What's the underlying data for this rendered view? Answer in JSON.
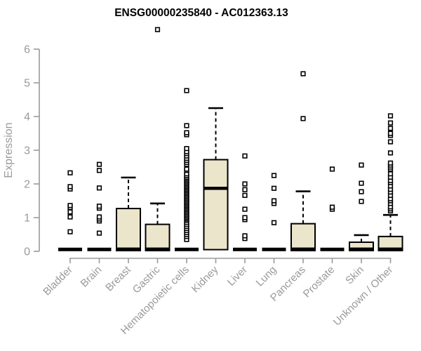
{
  "figure": {
    "title": "ENSG00000235840 - AC012363.13",
    "y_axis_label": "Expression"
  },
  "chart_data": {
    "type": "boxplot",
    "title": "ENSG00000235840 - AC012363.13",
    "xlabel": "",
    "ylabel": "Expression",
    "ylim": [
      0,
      6.8
    ],
    "yticks": [
      0,
      1,
      2,
      3,
      4,
      5,
      6
    ],
    "grid": false,
    "legend": false,
    "categories": [
      "Bladder",
      "Brain",
      "Breast",
      "Gastric",
      "Hematopoietic cells",
      "Kidney",
      "Liver",
      "Lung",
      "Pancreas",
      "Prostate",
      "Skin",
      "Unknown / Other"
    ],
    "series": [
      {
        "name": "Bladder",
        "q1": 0,
        "median": 0,
        "q3": 0,
        "whisker_low": 0,
        "whisker_high": 0,
        "outliers": [
          0.58,
          1.02,
          1.17,
          1.3,
          1.36,
          1.85,
          1.92,
          2.33
        ]
      },
      {
        "name": "Brain",
        "q1": 0,
        "median": 0,
        "q3": 0,
        "whisker_low": 0,
        "whisker_high": 0,
        "outliers": [
          0.54,
          0.9,
          0.96,
          1.02,
          1.28,
          1.34,
          1.88,
          2.4,
          2.58
        ]
      },
      {
        "name": "Breast",
        "q1": 0,
        "median": 0,
        "q3": 1.27,
        "whisker_low": 0,
        "whisker_high": 2.19,
        "outliers": []
      },
      {
        "name": "Gastric",
        "q1": 0,
        "median": 0,
        "q3": 0.8,
        "whisker_low": 0,
        "whisker_high": 1.42,
        "outliers": [
          6.58
        ]
      },
      {
        "name": "Hematopoietic cells",
        "q1": 0,
        "median": 0,
        "q3": 0,
        "whisker_low": 0,
        "whisker_high": 0,
        "outliers": [
          0.35,
          0.44,
          0.5,
          0.56,
          0.62,
          0.68,
          0.74,
          0.8,
          0.86,
          0.92,
          0.96,
          1.0,
          1.04,
          1.08,
          1.12,
          1.16,
          1.2,
          1.24,
          1.28,
          1.32,
          1.36,
          1.4,
          1.44,
          1.48,
          1.52,
          1.56,
          1.6,
          1.64,
          1.68,
          1.72,
          1.76,
          1.8,
          1.84,
          1.88,
          1.92,
          1.96,
          2.0,
          2.04,
          2.08,
          2.12,
          2.16,
          2.2,
          2.25,
          2.3,
          2.4,
          2.44,
          2.58,
          2.64,
          2.7,
          2.76,
          2.83,
          2.9,
          2.96,
          3.05,
          3.46,
          3.52,
          3.73,
          4.77
        ]
      },
      {
        "name": "Kidney",
        "q1": 0.05,
        "median": 1.87,
        "q3": 2.72,
        "whisker_low": 0,
        "whisker_high": 4.25,
        "outliers": []
      },
      {
        "name": "Liver",
        "q1": 0,
        "median": 0,
        "q3": 0,
        "whisker_low": 0,
        "whisker_high": 0,
        "outliers": [
          0.38,
          0.46,
          0.94,
          1.0,
          1.25,
          1.66,
          1.83,
          2.0,
          2.83
        ]
      },
      {
        "name": "Lung",
        "q1": 0,
        "median": 0,
        "q3": 0,
        "whisker_low": 0,
        "whisker_high": 0,
        "outliers": [
          0.85,
          1.42,
          1.5,
          1.87,
          2.25
        ]
      },
      {
        "name": "Pancreas",
        "q1": 0,
        "median": 0,
        "q3": 0.82,
        "whisker_low": 0,
        "whisker_high": 1.78,
        "outliers": [
          3.94,
          5.27
        ]
      },
      {
        "name": "Prostate",
        "q1": 0,
        "median": 0,
        "q3": 0,
        "whisker_low": 0,
        "whisker_high": 0,
        "outliers": [
          1.25,
          1.31,
          2.44
        ]
      },
      {
        "name": "Skin",
        "q1": 0,
        "median": 0,
        "q3": 0.27,
        "whisker_low": 0,
        "whisker_high": 0.48,
        "outliers": [
          1.48,
          1.77,
          2.02,
          2.56
        ]
      },
      {
        "name": "Unknown / Other",
        "q1": 0,
        "median": 0,
        "q3": 0.44,
        "whisker_low": 0,
        "whisker_high": 1.08,
        "outliers": [
          1.2,
          1.26,
          1.32,
          1.42,
          1.5,
          1.56,
          1.66,
          1.76,
          1.84,
          1.94,
          2.04,
          2.1,
          2.2,
          2.3,
          2.44,
          2.5,
          2.56,
          2.62,
          2.92,
          3.25,
          3.44,
          3.5,
          3.65,
          3.81,
          4.02
        ]
      }
    ],
    "colors": {
      "box_fill": "#ebe5cb",
      "box_stroke": "#000000",
      "median": "#000000",
      "whisker": "#000000",
      "outlier_stroke": "#000000",
      "outlier_fill": "#ffffff",
      "axis": "#9a9a9a",
      "tick_label": "#9a9a9a",
      "title": "#000000",
      "background": "#ffffff"
    }
  }
}
